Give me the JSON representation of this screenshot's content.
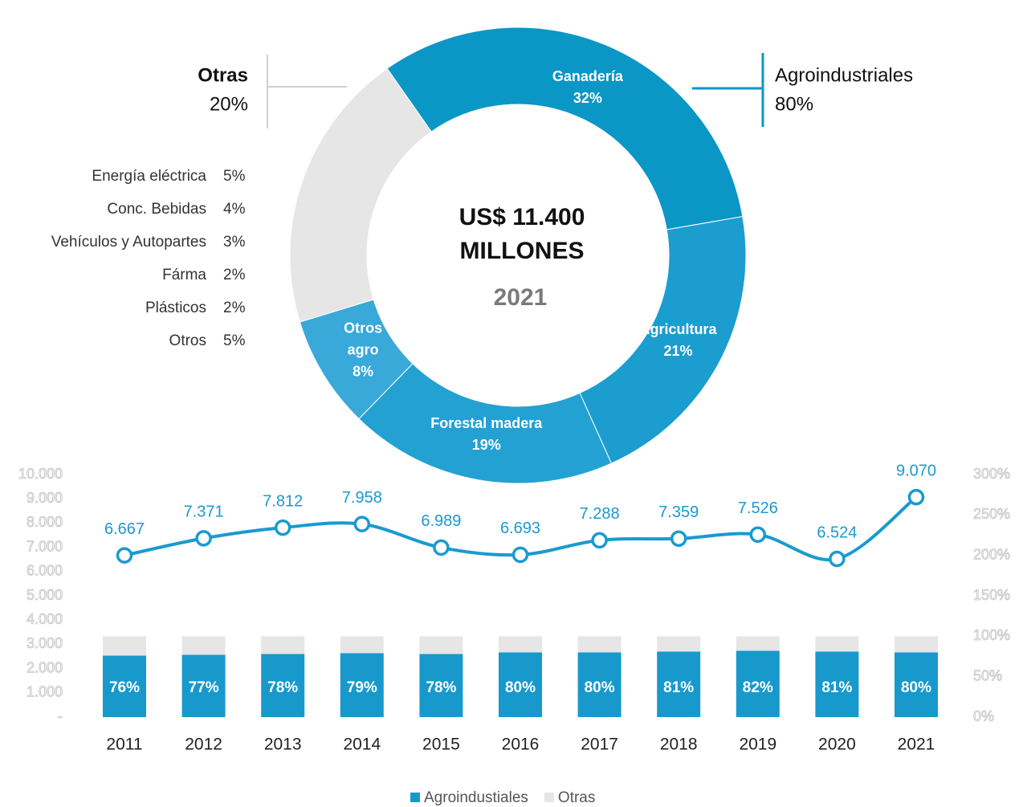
{
  "chart_data": [
    {
      "type": "pie",
      "center_text": [
        "US$ 11.400",
        "MILLONES"
      ],
      "year": "2021",
      "categories": [
        "Ganadería",
        "Agricultura",
        "Forestal madera",
        "Otros agro",
        "Otras"
      ],
      "values": [
        32,
        21,
        19,
        8,
        20
      ],
      "value_labels": [
        "32%",
        "21%",
        "19%",
        "8%",
        "20%"
      ],
      "colors": [
        "#0a97c6",
        "#1b9dcf",
        "#24a1d3",
        "#38a9d8",
        "#e6e6e6"
      ],
      "group": {
        "name": "Agroindustriales",
        "value": 80,
        "value_label": "80%",
        "color": "#0a97c6"
      },
      "breakdown": {
        "names": [
          "Energía eléctrica",
          "Conc. Bebidas",
          "Vehículos y Autopartes",
          "Fárma",
          "Plásticos",
          "Otros"
        ],
        "values": [
          5,
          4,
          3,
          2,
          2,
          5
        ],
        "value_labels": [
          "5%",
          "4%",
          "3%",
          "2%",
          "2%",
          "5%"
        ]
      }
    },
    {
      "type": "bar",
      "categories": [
        "2011",
        "2012",
        "2013",
        "2014",
        "2015",
        "2016",
        "2017",
        "2018",
        "2019",
        "2020",
        "2021"
      ],
      "series": [
        {
          "type": "line",
          "color": "#1a9ad0",
          "values": [
            6667,
            7371,
            7812,
            7958,
            6989,
            6693,
            7288,
            7359,
            7526,
            6524,
            9070
          ],
          "value_labels": [
            "6.667",
            "7.371",
            "7.812",
            "7.958",
            "6.989",
            "6.693",
            "7.288",
            "7.359",
            "7.526",
            "6.524",
            "9.070"
          ]
        },
        {
          "name": "Agroindustiales",
          "color": "#1899cc",
          "axis": "y2",
          "values": [
            76,
            77,
            78,
            79,
            78,
            80,
            80,
            81,
            82,
            81,
            80
          ],
          "value_labels": [
            "76%",
            "77%",
            "78%",
            "79%",
            "78%",
            "80%",
            "80%",
            "81%",
            "82%",
            "81%",
            "80%"
          ]
        },
        {
          "name": "Otras",
          "color": "#e6e6e6",
          "axis": "y2",
          "values": [
            24,
            23,
            22,
            21,
            22,
            20,
            20,
            19,
            18,
            19,
            20
          ]
        }
      ],
      "ylim": [
        0,
        10000
      ],
      "yticks": [
        {
          "value": 0,
          "label": "-"
        },
        {
          "value": 1000,
          "label": "1.000"
        },
        {
          "value": 2000,
          "label": "2.000"
        },
        {
          "value": 3000,
          "label": "3.000"
        },
        {
          "value": 4000,
          "label": "4.000"
        },
        {
          "value": 5000,
          "label": "5.000"
        },
        {
          "value": 6000,
          "label": "6.000"
        },
        {
          "value": 7000,
          "label": "7.000"
        },
        {
          "value": 8000,
          "label": "8.000"
        },
        {
          "value": 9000,
          "label": "9.000"
        },
        {
          "value": 10000,
          "label": "10.000"
        }
      ],
      "y2lim": [
        0,
        300
      ],
      "y2ticks": [
        {
          "value": 0,
          "label": "0%"
        },
        {
          "value": 50,
          "label": "50%"
        },
        {
          "value": 100,
          "label": "100%"
        },
        {
          "value": 150,
          "label": "150%"
        },
        {
          "value": 200,
          "label": "200%"
        },
        {
          "value": 250,
          "label": "250%"
        },
        {
          "value": 300,
          "label": "300%"
        }
      ]
    }
  ]
}
